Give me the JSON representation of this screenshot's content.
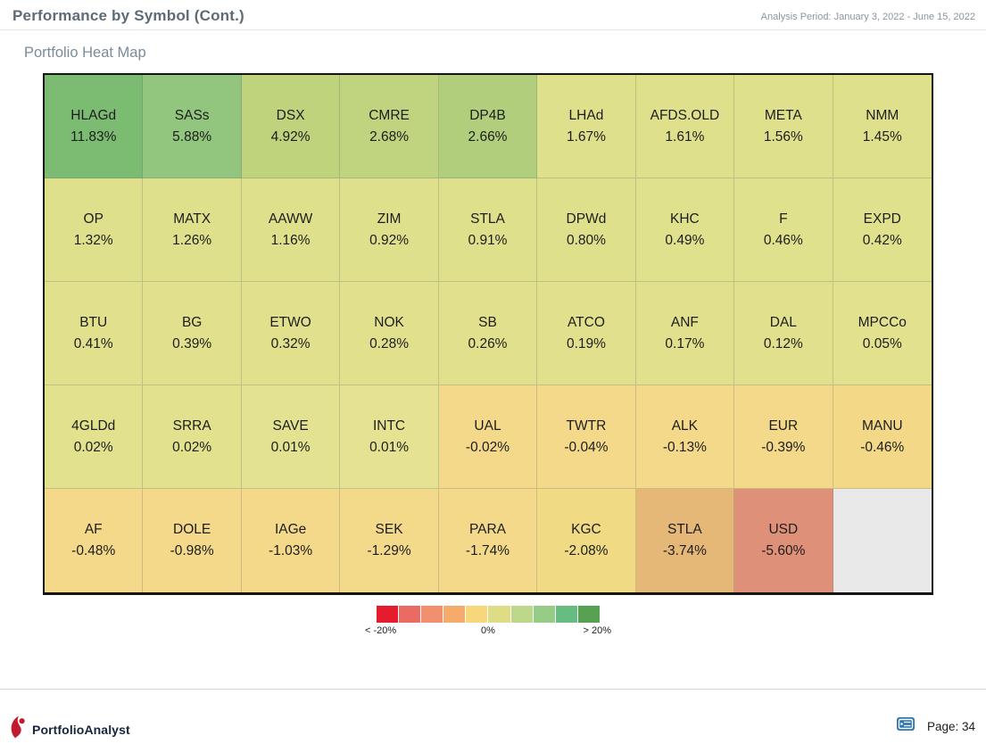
{
  "header": {
    "title": "Performance by Symbol (Cont.)",
    "analysis_period": "Analysis Period: January 3, 2022 - June 15, 2022"
  },
  "section": {
    "title": "Portfolio Heat Map"
  },
  "chart_data": {
    "type": "heatmap",
    "title": "Portfolio Heat Map",
    "unit": "percent return",
    "rows": 5,
    "cols": 9,
    "cells": [
      {
        "symbol": "HLAGd",
        "label": "11.83%",
        "value": 11.83,
        "color": "#7cbb72"
      },
      {
        "symbol": "SASs",
        "label": "5.88%",
        "value": 5.88,
        "color": "#92c57d"
      },
      {
        "symbol": "DSX",
        "label": "4.92%",
        "value": 4.92,
        "color": "#bed37b"
      },
      {
        "symbol": "CMRE",
        "label": "2.68%",
        "value": 2.68,
        "color": "#c0d37e"
      },
      {
        "symbol": "DP4B",
        "label": "2.66%",
        "value": 2.66,
        "color": "#b1ce7c"
      },
      {
        "symbol": "LHAd",
        "label": "1.67%",
        "value": 1.67,
        "color": "#dfe08c"
      },
      {
        "symbol": "AFDS.OLD",
        "label": "1.61%",
        "value": 1.61,
        "color": "#dfe08c"
      },
      {
        "symbol": "META",
        "label": "1.56%",
        "value": 1.56,
        "color": "#dfe08c"
      },
      {
        "symbol": "NMM",
        "label": "1.45%",
        "value": 1.45,
        "color": "#dfe08c"
      },
      {
        "symbol": "OP",
        "label": "1.32%",
        "value": 1.32,
        "color": "#dfe08c"
      },
      {
        "symbol": "MATX",
        "label": "1.26%",
        "value": 1.26,
        "color": "#dfe08c"
      },
      {
        "symbol": "AAWW",
        "label": "1.16%",
        "value": 1.16,
        "color": "#dfe08c"
      },
      {
        "symbol": "ZIM",
        "label": "0.92%",
        "value": 0.92,
        "color": "#dfe08c"
      },
      {
        "symbol": "STLA",
        "label": "0.91%",
        "value": 0.91,
        "color": "#dfe08c"
      },
      {
        "symbol": "DPWd",
        "label": "0.80%",
        "value": 0.8,
        "color": "#dfe08c"
      },
      {
        "symbol": "KHC",
        "label": "0.49%",
        "value": 0.49,
        "color": "#e0e18d"
      },
      {
        "symbol": "F",
        "label": "0.46%",
        "value": 0.46,
        "color": "#e0e18d"
      },
      {
        "symbol": "EXPD",
        "label": "0.42%",
        "value": 0.42,
        "color": "#e0e18d"
      },
      {
        "symbol": "BTU",
        "label": "0.41%",
        "value": 0.41,
        "color": "#e1e18d"
      },
      {
        "symbol": "BG",
        "label": "0.39%",
        "value": 0.39,
        "color": "#e1e18d"
      },
      {
        "symbol": "ETWO",
        "label": "0.32%",
        "value": 0.32,
        "color": "#e1e18d"
      },
      {
        "symbol": "NOK",
        "label": "0.28%",
        "value": 0.28,
        "color": "#e1e18d"
      },
      {
        "symbol": "SB",
        "label": "0.26%",
        "value": 0.26,
        "color": "#e1e18d"
      },
      {
        "symbol": "ATCO",
        "label": "0.19%",
        "value": 0.19,
        "color": "#e1e18d"
      },
      {
        "symbol": "ANF",
        "label": "0.17%",
        "value": 0.17,
        "color": "#e1e18d"
      },
      {
        "symbol": "DAL",
        "label": "0.12%",
        "value": 0.12,
        "color": "#e1e18d"
      },
      {
        "symbol": "MPCCo",
        "label": "0.05%",
        "value": 0.05,
        "color": "#e2e18e"
      },
      {
        "symbol": "4GLDd",
        "label": "0.02%",
        "value": 0.02,
        "color": "#e2e18e"
      },
      {
        "symbol": "SRRA",
        "label": "0.02%",
        "value": 0.02,
        "color": "#e2e18e"
      },
      {
        "symbol": "SAVE",
        "label": "0.01%",
        "value": 0.01,
        "color": "#e3e290"
      },
      {
        "symbol": "INTC",
        "label": "0.01%",
        "value": 0.01,
        "color": "#e5e392"
      },
      {
        "symbol": "UAL",
        "label": "-0.02%",
        "value": -0.02,
        "color": "#f3d989"
      },
      {
        "symbol": "TWTR",
        "label": "-0.04%",
        "value": -0.04,
        "color": "#f3d989"
      },
      {
        "symbol": "ALK",
        "label": "-0.13%",
        "value": -0.13,
        "color": "#f3d989"
      },
      {
        "symbol": "EUR",
        "label": "-0.39%",
        "value": -0.39,
        "color": "#f3d989"
      },
      {
        "symbol": "MANU",
        "label": "-0.46%",
        "value": -0.46,
        "color": "#f3d888"
      },
      {
        "symbol": "AF",
        "label": "-0.48%",
        "value": -0.48,
        "color": "#f3d989"
      },
      {
        "symbol": "DOLE",
        "label": "-0.98%",
        "value": -0.98,
        "color": "#f3d989"
      },
      {
        "symbol": "IAGe",
        "label": "-1.03%",
        "value": -1.03,
        "color": "#f3d989"
      },
      {
        "symbol": "SEK",
        "label": "-1.29%",
        "value": -1.29,
        "color": "#f3d98a"
      },
      {
        "symbol": "PARA",
        "label": "-1.74%",
        "value": -1.74,
        "color": "#f3d989"
      },
      {
        "symbol": "KGC",
        "label": "-2.08%",
        "value": -2.08,
        "color": "#f1da84"
      },
      {
        "symbol": "STLA",
        "label": "-3.74%",
        "value": -3.74,
        "color": "#e6b878"
      },
      {
        "symbol": "USD",
        "label": "-5.60%",
        "value": -5.6,
        "color": "#df9078"
      },
      {
        "symbol": "",
        "label": "",
        "value": null,
        "color": "#e9e9e9"
      }
    ]
  },
  "legend": {
    "colors": [
      "#e51c2d",
      "#e96b63",
      "#f0906e",
      "#f5ab69",
      "#f8d67b",
      "#dedc85",
      "#bdd88a",
      "#96cc86",
      "#67bd81",
      "#58a152"
    ],
    "min_label": "< -20%",
    "mid_label": "0%",
    "max_label": "> 20%"
  },
  "footer": {
    "brand": "PortfolioAnalyst",
    "page_label": "Page: 34",
    "brand_color": "#c21b2e",
    "page_icon_color": "#2d77af"
  }
}
